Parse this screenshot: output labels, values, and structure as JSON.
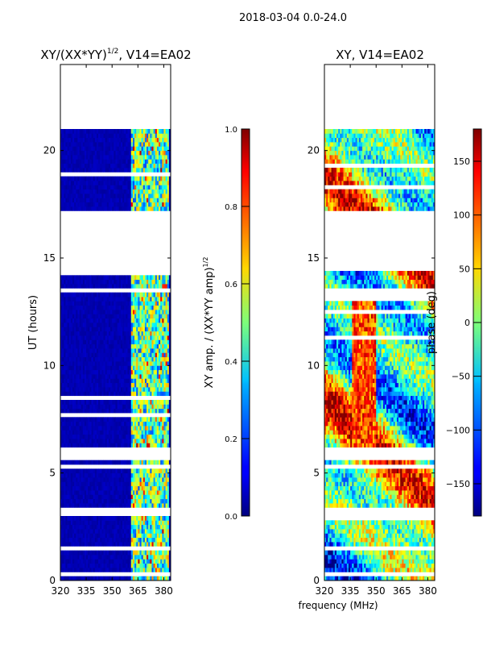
{
  "figure": {
    "suptitle": "2018-03-04 0.0-24.0",
    "shared_xlabel": "frequency (MHz)"
  },
  "chart_data": [
    {
      "type": "heatmap",
      "title": "XY/(XX*YY)",
      "title_exponent": "1/2",
      "title_suffix": ", V14=EA02",
      "ylabel": "UT (hours)",
      "xlim": [
        320,
        384
      ],
      "ylim": [
        0,
        24
      ],
      "xticks": [
        320,
        335,
        350,
        365,
        380
      ],
      "yticks": [
        0,
        5,
        10,
        15,
        20
      ],
      "colorbar": {
        "label": "XY amp. / (XX*YY amp)",
        "label_exponent": "1/2",
        "range": [
          0.0,
          1.0
        ],
        "ticks": [
          "0.0",
          "0.2",
          "0.4",
          "0.6",
          "0.8",
          "1.0"
        ],
        "colormap": "jet"
      },
      "data_start_hours": 0,
      "data_end_hours": 21.0,
      "gaps_hours": [
        [
          16.2,
          17.2
        ],
        [
          14.3,
          15.1
        ],
        [
          15.2,
          16.2
        ],
        [
          5.6,
          6.2
        ],
        [
          5.2,
          5.5
        ],
        [
          3.1,
          3.5
        ],
        [
          1.4,
          1.6
        ],
        [
          0.3,
          0.4
        ]
      ],
      "background_value": 0.03,
      "active_band_mhz": [
        361,
        382
      ]
    },
    {
      "type": "heatmap",
      "title": "XY, V14=EA02",
      "ylabel": "phase (deg)",
      "xlim": [
        320,
        384
      ],
      "ylim": [
        0,
        24
      ],
      "xticks": [
        320,
        335,
        350,
        365,
        380
      ],
      "yticks": [
        0,
        5,
        10,
        15,
        20
      ],
      "colorbar": {
        "label": "phase (deg)",
        "range": [
          -180,
          180
        ],
        "ticks": [
          "−150",
          "−100",
          "−50",
          "0",
          "50",
          "100",
          "150"
        ],
        "tick_values": [
          -150,
          -100,
          -50,
          0,
          50,
          100,
          150
        ],
        "colormap": "jet"
      },
      "data_start_hours": 0,
      "data_end_hours": 20.9,
      "gaps_hours": [
        [
          16.2,
          17.2
        ],
        [
          14.3,
          15.1
        ],
        [
          15.2,
          16.2
        ],
        [
          5.6,
          6.2
        ],
        [
          5.2,
          5.5
        ],
        [
          3.1,
          3.5
        ],
        [
          1.4,
          1.6
        ],
        [
          0.3,
          0.4
        ]
      ]
    }
  ]
}
